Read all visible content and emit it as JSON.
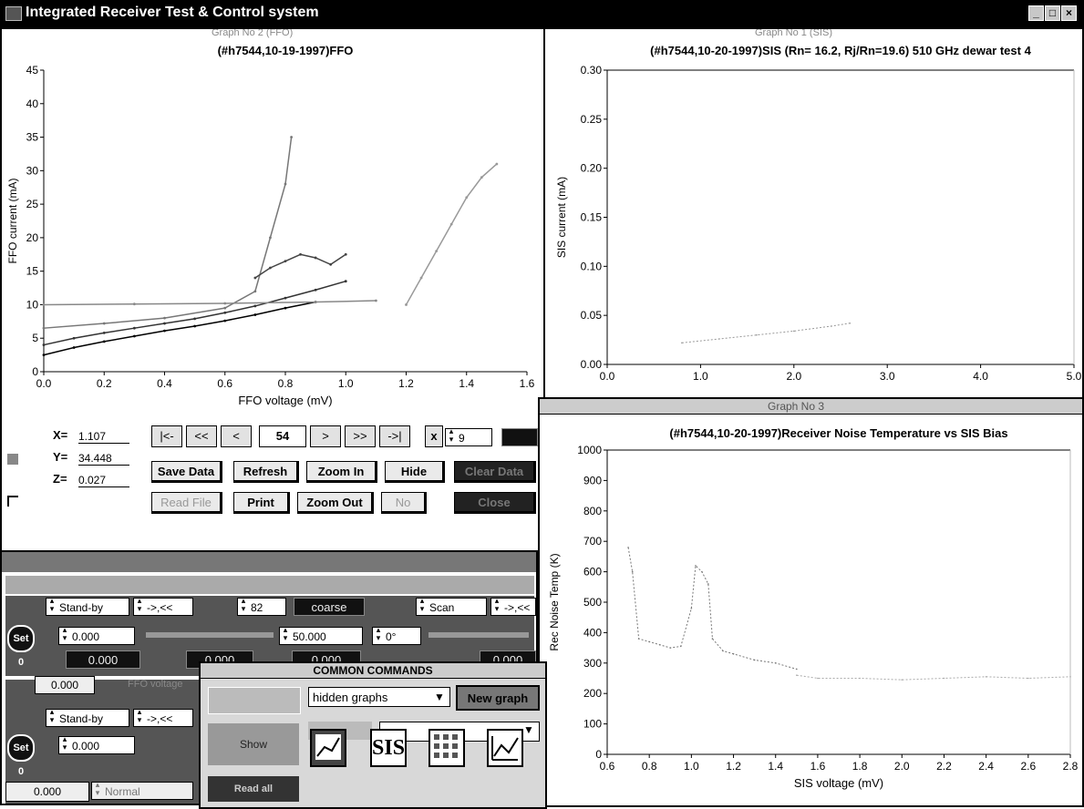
{
  "window": {
    "title": "Integrated Receiver Test & Control system"
  },
  "graph1": {
    "window_title": "Graph No 2 (FFO)",
    "chart_data": {
      "type": "scatter",
      "title": "(#h7544,10-19-1997)FFO",
      "xlabel": "FFO voltage (mV)",
      "ylabel": "FFO current (mA)",
      "xlim": [
        0,
        1.6
      ],
      "ylim": [
        0,
        45
      ],
      "xticks": [
        "0.0",
        "0.2",
        "0.4",
        "0.6",
        "0.8",
        "1.0",
        "1.2",
        "1.4",
        "1.6"
      ],
      "yticks": [
        "0",
        "5",
        "10",
        "15",
        "20",
        "25",
        "30",
        "35",
        "40",
        "45"
      ],
      "series": [
        {
          "x": [
            0.0,
            0.1,
            0.2,
            0.3,
            0.4,
            0.5,
            0.6,
            0.7,
            0.8,
            0.9
          ],
          "y": [
            2.5,
            3.6,
            4.5,
            5.3,
            6.1,
            6.8,
            7.6,
            8.5,
            9.5,
            10.4
          ]
        },
        {
          "x": [
            0.0,
            0.1,
            0.2,
            0.3,
            0.4,
            0.5,
            0.6,
            0.7,
            0.8,
            0.9,
            1.0
          ],
          "y": [
            4.0,
            5.0,
            5.8,
            6.5,
            7.2,
            7.9,
            8.8,
            9.8,
            11.0,
            12.2,
            13.5
          ]
        },
        {
          "x": [
            0.0,
            0.2,
            0.4,
            0.6,
            0.7,
            0.75,
            0.8,
            0.82
          ],
          "y": [
            6.5,
            7.2,
            8.0,
            9.5,
            12.0,
            20.0,
            28.0,
            35.0
          ]
        },
        {
          "x": [
            0.7,
            0.75,
            0.8,
            0.85,
            0.9,
            0.95,
            1.0
          ],
          "y": [
            14.0,
            15.5,
            16.5,
            17.5,
            17.0,
            16.0,
            17.5
          ]
        },
        {
          "x": [
            0.0,
            0.3,
            0.6,
            0.9,
            1.1
          ],
          "y": [
            10.0,
            10.1,
            10.2,
            10.4,
            10.6
          ]
        },
        {
          "x": [
            1.2,
            1.25,
            1.3,
            1.35,
            1.4,
            1.45,
            1.5
          ],
          "y": [
            10.0,
            14.0,
            18.0,
            22.0,
            26.0,
            29.0,
            31.0
          ]
        }
      ]
    },
    "readout": {
      "x_label": "X=",
      "x_value": "1.107",
      "y_label": "Y=",
      "y_value": "34.448",
      "z_label": "Z=",
      "z_value": "0.027"
    },
    "nav": {
      "first": "|<-",
      "prev_fast": "<<",
      "prev": "<",
      "index": "54",
      "next": ">",
      "next_fast": ">>",
      "last": "->|",
      "x_label": "x",
      "step": "9"
    },
    "buttons": {
      "save": "Save Data",
      "refresh": "Refresh",
      "zoom_in": "Zoom In",
      "hide": "Hide",
      "clear": "Clear Data",
      "read": "Read File",
      "print": "Print",
      "zoom_out": "Zoom Out",
      "no": "No",
      "close": "Close"
    }
  },
  "graph2": {
    "window_title": "Graph No 1 (SIS)",
    "chart_data": {
      "type": "line",
      "title": "(#h7544,10-20-1997)SIS (Rn= 16.2, Rj/Rn=19.6) 510 GHz dewar test 4",
      "xlabel": "",
      "ylabel": "SIS current (mA)",
      "xlim": [
        0,
        5.0
      ],
      "ylim": [
        0,
        0.3
      ],
      "xticks": [
        "0.0",
        "1.0",
        "2.0",
        "3.0",
        "4.0",
        "5.0"
      ],
      "yticks": [
        "0.00",
        "0.05",
        "0.10",
        "0.15",
        "0.20",
        "0.25",
        "0.30"
      ],
      "series": [
        {
          "x": [
            0.8,
            1.2,
            1.6,
            2.0,
            2.4,
            2.6
          ],
          "y": [
            0.022,
            0.026,
            0.03,
            0.034,
            0.039,
            0.042
          ]
        }
      ]
    }
  },
  "graph3": {
    "window_title": "Graph No 3",
    "chart_data": {
      "type": "line",
      "title": "(#h7544,10-20-1997)Receiver Noise Temperature vs SIS Bias",
      "xlabel": "SIS voltage (mV)",
      "ylabel": "Rec Noise Temp (K)",
      "xlim": [
        0.6,
        2.8
      ],
      "ylim": [
        0,
        1000
      ],
      "xticks": [
        "0.6",
        "0.8",
        "1.0",
        "1.2",
        "1.4",
        "1.6",
        "1.8",
        "2.0",
        "2.2",
        "2.4",
        "2.6",
        "2.8"
      ],
      "yticks": [
        "0",
        "100",
        "200",
        "300",
        "400",
        "500",
        "600",
        "700",
        "800",
        "900",
        "1000"
      ],
      "series": [
        {
          "x": [
            0.7,
            0.72,
            0.75,
            0.8,
            0.85,
            0.9,
            0.95,
            1.0,
            1.02,
            1.05,
            1.08,
            1.1,
            1.15,
            1.2,
            1.3,
            1.4,
            1.5
          ],
          "y": [
            680,
            600,
            380,
            370,
            360,
            350,
            355,
            480,
            620,
            600,
            560,
            380,
            340,
            330,
            310,
            300,
            280
          ]
        },
        {
          "x": [
            1.5,
            1.6,
            1.8,
            2.0,
            2.2,
            2.4,
            2.6,
            2.8
          ],
          "y": [
            260,
            250,
            250,
            245,
            250,
            255,
            250,
            255
          ]
        }
      ]
    }
  },
  "control": {
    "row1": {
      "mode": "Stand-by",
      "dir": "->,<<",
      "num": "82",
      "coarse": "coarse",
      "scan": "Scan",
      "dir2": "->,<<"
    },
    "row2": {
      "set0": "Set 0",
      "val1": "0.000",
      "val2": "50.000",
      "val3": "0°"
    },
    "row3": {
      "val1": "0.000",
      "val2": "0.000",
      "val3": "0.000",
      "val4": "0.000"
    },
    "row4": {
      "val": "0.000",
      "label": "FFO voltage"
    },
    "row5": {
      "mode": "Stand-by",
      "dir": "->,<<"
    },
    "row6": {
      "set0": "Set 0",
      "val1": "0.000"
    },
    "row7": {
      "val": "0.000",
      "label": "Normal"
    }
  },
  "common": {
    "title": "COMMON COMMANDS",
    "hidden_graphs": "hidden graphs",
    "new_graph": "New graph",
    "show": "Show",
    "read_all": "Read all",
    "sis_icon": "SIS"
  },
  "colors": {
    "bg": "#ffffff",
    "titlebar": "#000000",
    "panel": "#555555"
  }
}
